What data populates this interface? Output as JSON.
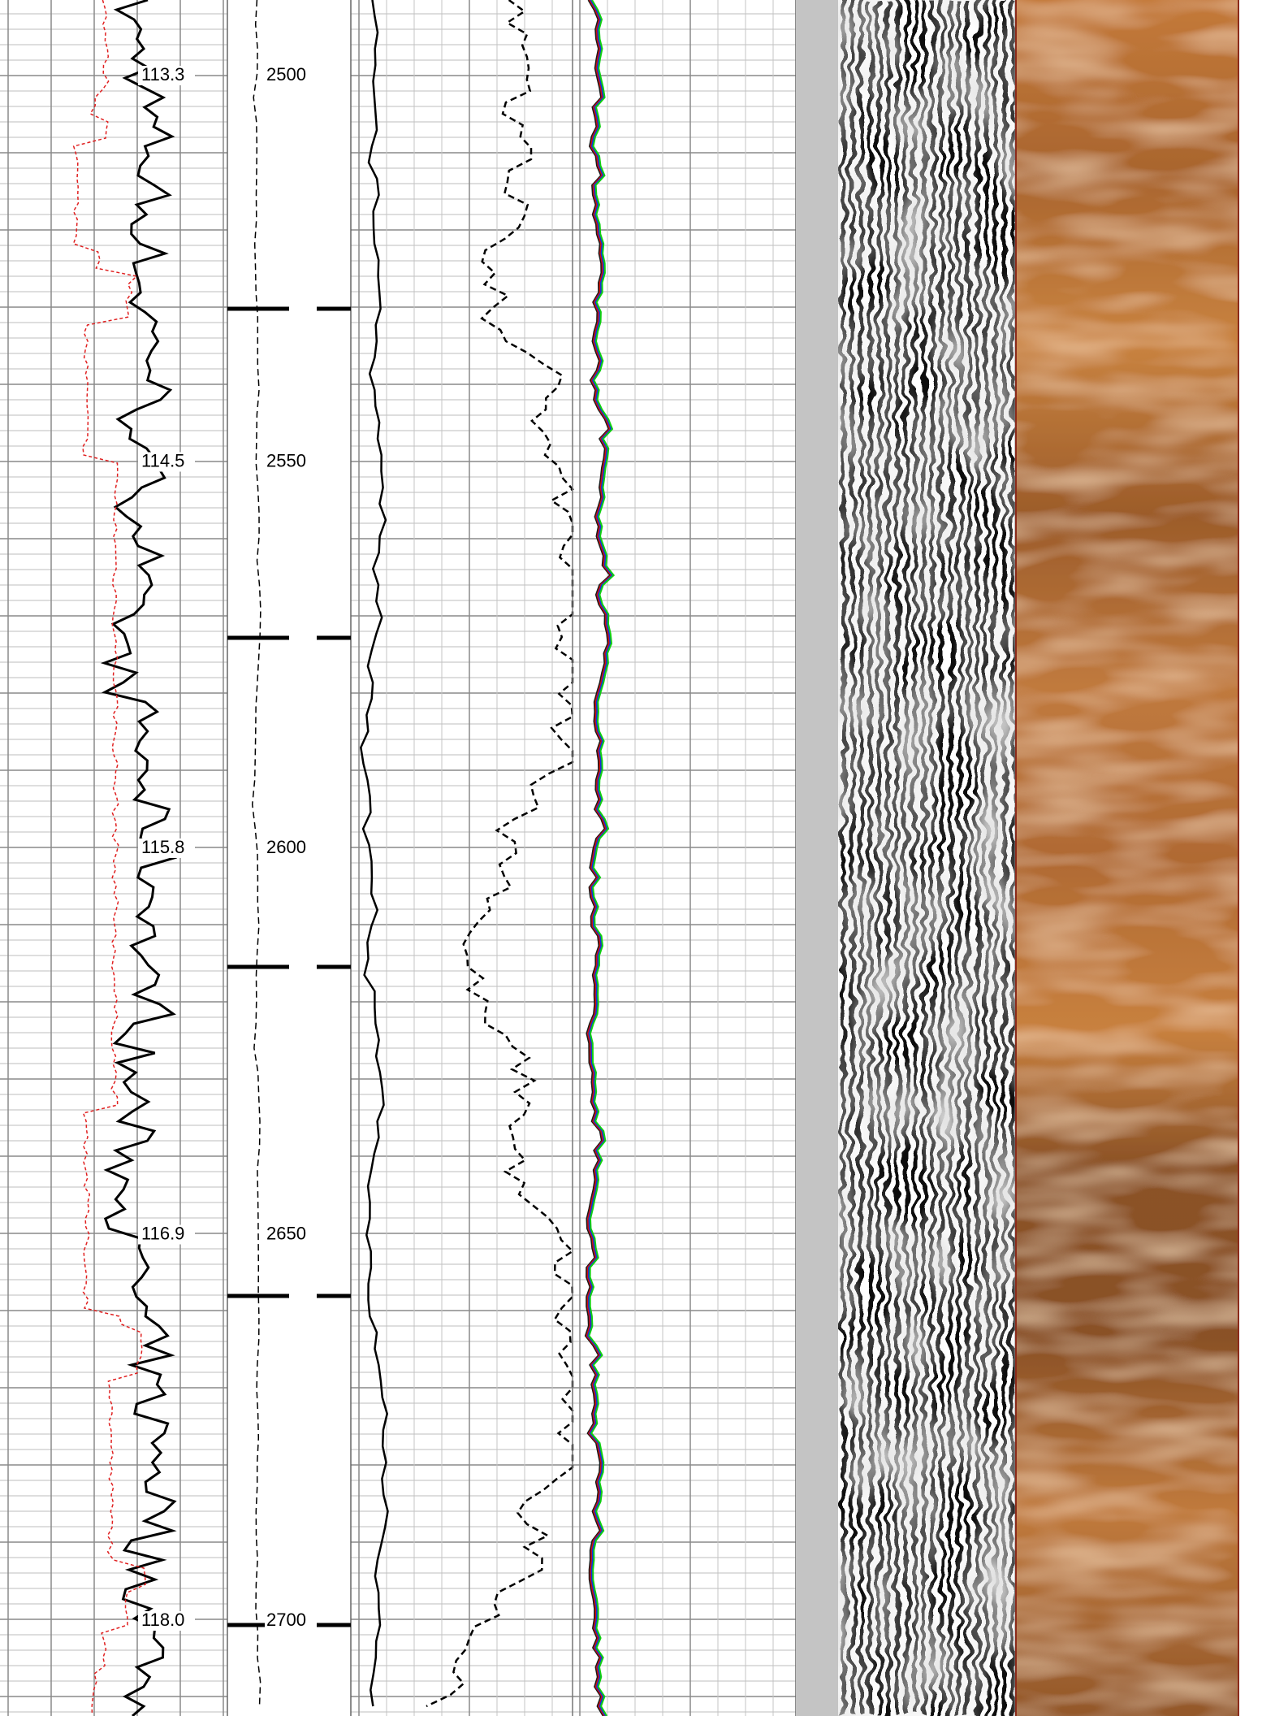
{
  "time_track": {
    "labels": [
      "113.3",
      "114.5",
      "115.8",
      "116.9",
      "118.0"
    ]
  },
  "depth_track": {
    "labels": [
      "2500",
      "2550",
      "2600",
      "2650",
      "2700"
    ]
  }
}
